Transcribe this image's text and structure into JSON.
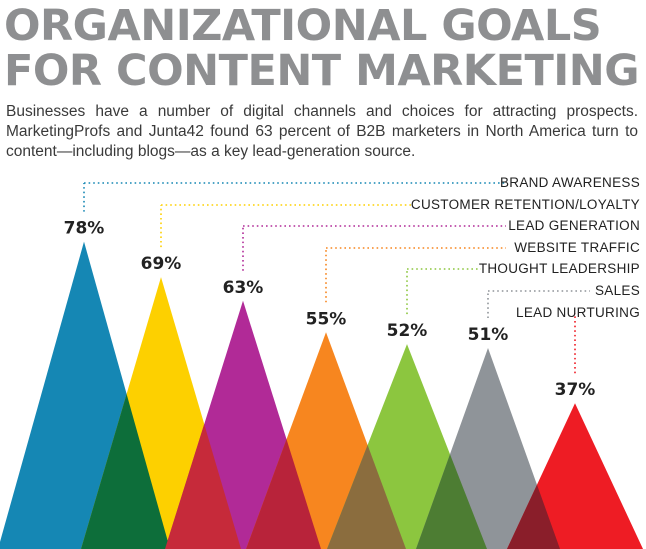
{
  "header": {
    "title_line1": "ORGANIZATIONAL GOALS",
    "title_line2": "FOR CONTENT MARKETING",
    "subtitle": "Businesses have a number of digital channels and choices for attracting prospects. MarketingProfs and Junta42 found 63 percent of B2B marketers in North America turn to content—including blogs—as a key lead-generation source."
  },
  "chart_data": {
    "type": "bar",
    "title": "ORGANIZATIONAL GOALS FOR CONTENT MARKETING",
    "categories": [
      "BRAND AWARENESS",
      "CUSTOMER RETENTION/LOYALTY",
      "LEAD GENERATION",
      "WEBSITE TRAFFIC",
      "THOUGHT LEADERSHIP",
      "SALES",
      "LEAD NURTURING"
    ],
    "values": [
      78,
      69,
      63,
      55,
      52,
      51,
      37
    ],
    "value_labels": [
      "78%",
      "69%",
      "63%",
      "55%",
      "52%",
      "51%",
      "37%"
    ],
    "unit": "%",
    "colors": [
      "#1587b4",
      "#fdd000",
      "#b12a97",
      "#f7861f",
      "#8cc63f",
      "#8f9499",
      "#ee1c24"
    ],
    "overlap_colors": [
      "#0d6e3a",
      "#c62a3a",
      "#b8233a",
      "#8b6d3e",
      "#4d7d33",
      "#8a1e2a"
    ]
  }
}
